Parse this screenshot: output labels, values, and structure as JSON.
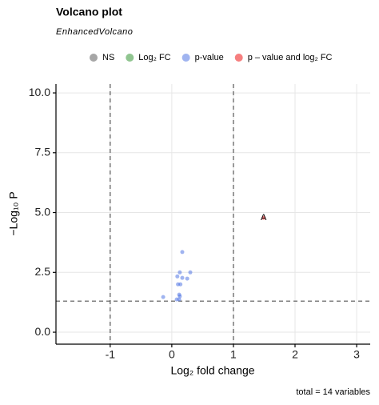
{
  "chart_data": {
    "type": "scatter",
    "title": "Volcano plot",
    "subtitle": "EnhancedVolcano",
    "x_label": "Log₂ fold change",
    "y_label": "−Log₁₀ P",
    "caption": "total = 14 variables",
    "xlim": [
      -1.88,
      3.22
    ],
    "ylim": [
      -0.5,
      10.37
    ],
    "xticks": [
      -1,
      0,
      1,
      2,
      3
    ],
    "yticks": [
      {
        "value": 0,
        "label": "0.0"
      },
      {
        "value": 2.5,
        "label": "2.5"
      },
      {
        "value": 5,
        "label": "5.0"
      },
      {
        "value": 7.5,
        "label": "7.5"
      },
      {
        "value": 10,
        "label": "10.0"
      }
    ],
    "grid": true,
    "legend": "top",
    "vlines": [
      -1,
      1
    ],
    "hline": 1.3,
    "series": [
      {
        "name": "NS",
        "color": "#4d4d4d",
        "x": [],
        "y": []
      },
      {
        "name": "Log₂ FC",
        "color": "#228b22",
        "x": [],
        "y": []
      },
      {
        "name": "p-value",
        "color": "#4169e1",
        "x": [
          0.17,
          0.13,
          0.3,
          0.09,
          0.17,
          0.25,
          0.1,
          0.14,
          -0.14,
          0.12,
          0.13,
          0.08,
          0.12
        ],
        "y": [
          3.35,
          2.5,
          2.5,
          2.33,
          2.27,
          2.24,
          2.0,
          2.0,
          1.47,
          1.57,
          1.5,
          1.37,
          1.37
        ]
      },
      {
        "name": "p – value and log₂ FC",
        "color": "#ee0000",
        "x": [
          1.49
        ],
        "y": [
          4.78
        ],
        "labels": [
          "A"
        ]
      }
    ]
  }
}
